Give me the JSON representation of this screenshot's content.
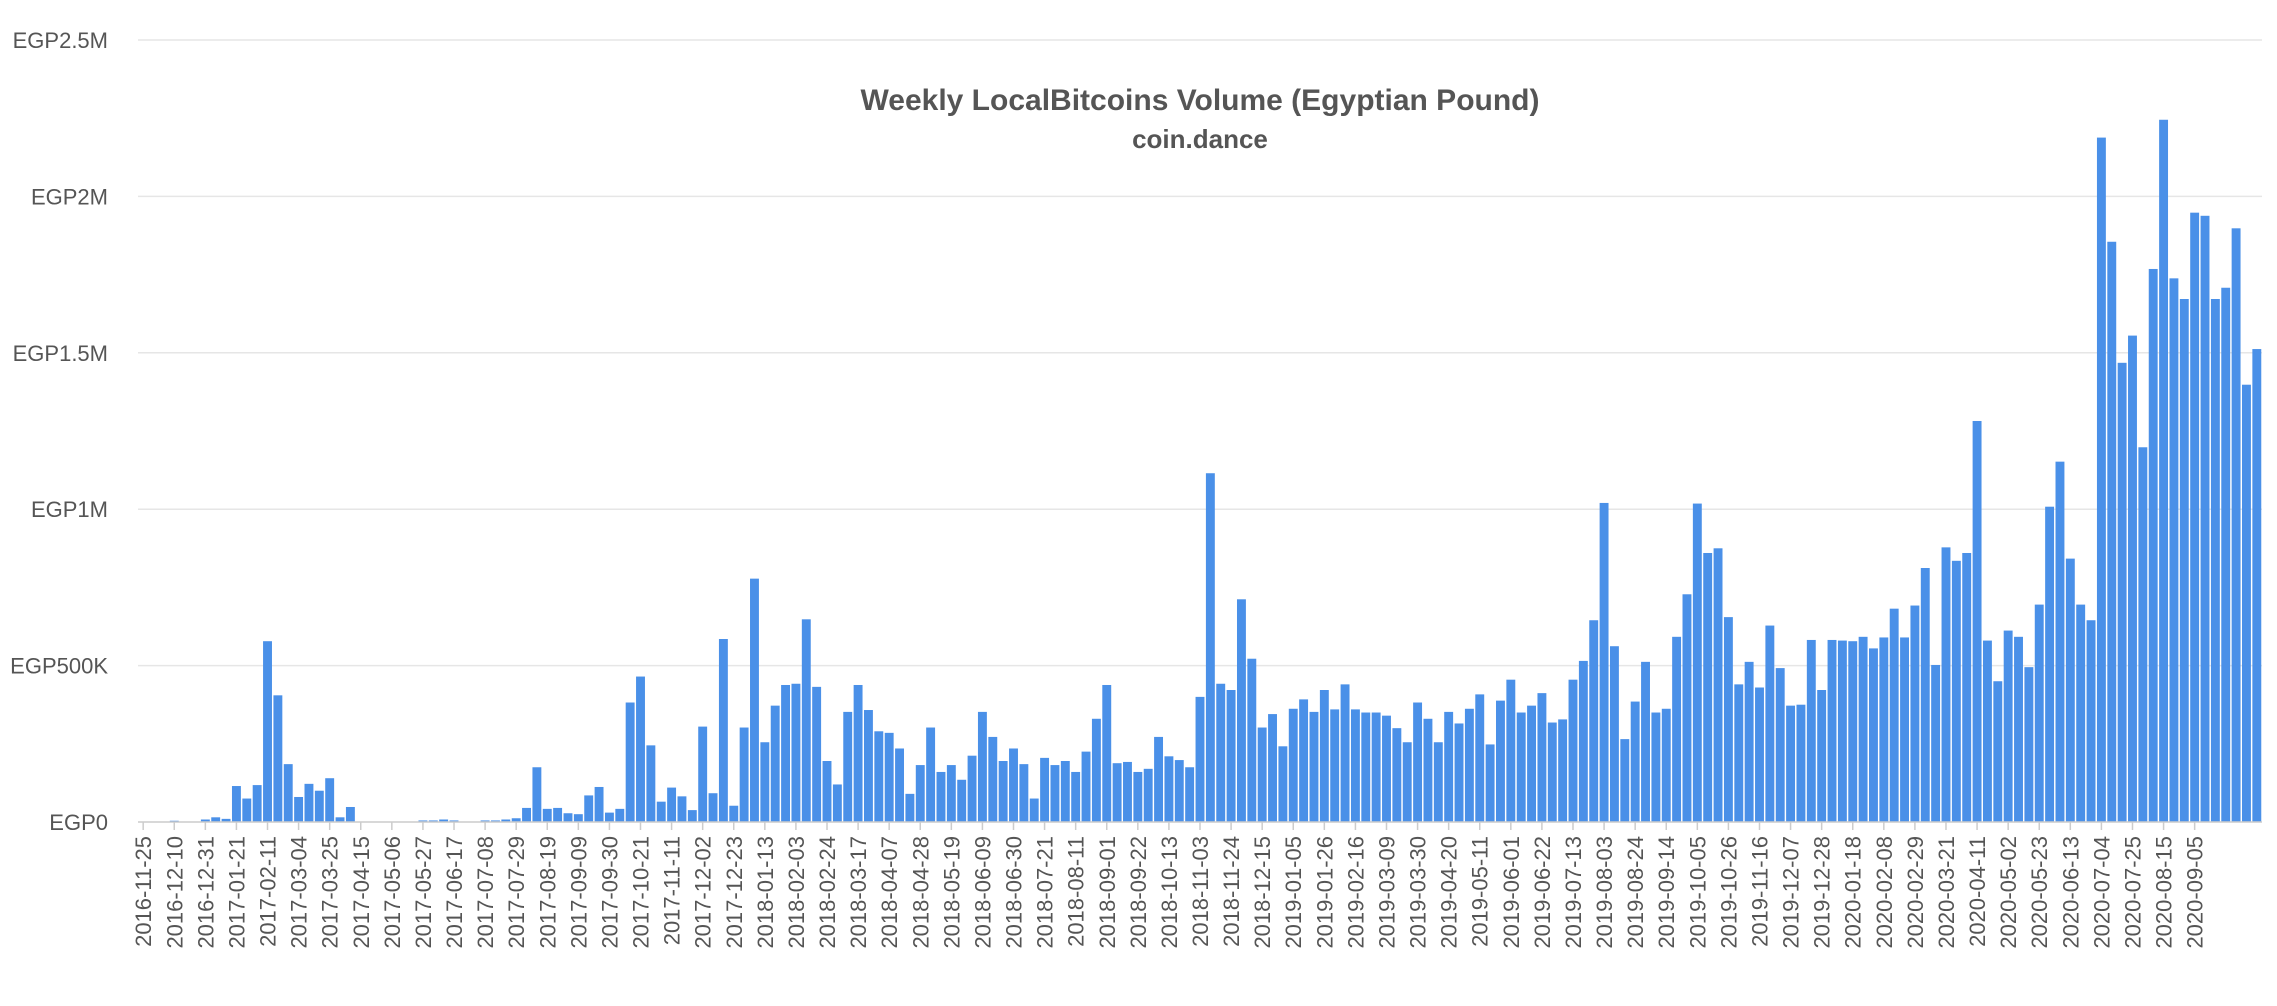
{
  "chart_data": {
    "type": "bar",
    "title": "Weekly LocalBitcoins Volume (Egyptian Pound)",
    "subtitle": "coin.dance",
    "xlabel": "",
    "ylabel": "",
    "ylim": [
      0,
      2500000
    ],
    "y_ticks": [
      {
        "value": 0,
        "label": "EGP0"
      },
      {
        "value": 500000,
        "label": "EGP500K"
      },
      {
        "value": 1000000,
        "label": "EGP1M"
      },
      {
        "value": 1500000,
        "label": "EGP1.5M"
      },
      {
        "value": 2000000,
        "label": "EGP2M"
      },
      {
        "value": 2500000,
        "label": "EGP2.5M"
      }
    ],
    "grid": true,
    "legend": "none",
    "bar_color": "#4a90e8",
    "gridline_color": "#e6e6e6",
    "x_tick_labels": [
      "2016-11-25",
      "2016-12-10",
      "2016-12-31",
      "2017-01-21",
      "2017-02-11",
      "2017-03-04",
      "2017-03-25",
      "2017-04-15",
      "2017-05-06",
      "2017-05-27",
      "2017-06-17",
      "2017-07-08",
      "2017-07-29",
      "2017-08-19",
      "2017-09-09",
      "2017-09-30",
      "2017-10-21",
      "2017-11-11",
      "2017-12-02",
      "2017-12-23",
      "2018-01-13",
      "2018-02-03",
      "2018-02-24",
      "2018-03-17",
      "2018-04-07",
      "2018-04-28",
      "2018-05-19",
      "2018-06-09",
      "2018-06-30",
      "2018-07-21",
      "2018-08-11",
      "2018-09-01",
      "2018-09-22",
      "2018-10-13",
      "2018-11-03",
      "2018-11-24",
      "2018-12-15",
      "2019-01-05",
      "2019-01-26",
      "2019-02-16",
      "2019-03-09",
      "2019-03-30",
      "2019-04-20",
      "2019-05-11",
      "2019-06-01",
      "2019-06-22",
      "2019-07-13",
      "2019-08-03",
      "2019-08-24",
      "2019-09-14",
      "2019-10-05",
      "2019-10-26",
      "2019-11-16",
      "2019-12-07",
      "2019-12-28",
      "2020-01-18",
      "2020-02-08",
      "2020-02-29",
      "2020-03-21",
      "2020-04-11",
      "2020-05-02",
      "2020-05-23",
      "2020-06-13",
      "2020-07-04",
      "2020-07-25",
      "2020-08-15",
      "2020-09-05"
    ],
    "values": [
      0,
      0,
      0,
      4000,
      0,
      0,
      8000,
      15000,
      10000,
      115000,
      75000,
      118000,
      578000,
      405000,
      185000,
      80000,
      122000,
      100000,
      140000,
      15000,
      48000,
      0,
      0,
      0,
      0,
      0,
      0,
      5000,
      5000,
      8000,
      5000,
      0,
      0,
      5000,
      5000,
      8000,
      12000,
      45000,
      175000,
      42000,
      45000,
      28000,
      25000,
      85000,
      112000,
      30000,
      42000,
      382000,
      465000,
      245000,
      65000,
      110000,
      82000,
      38000,
      305000,
      92000,
      585000,
      52000,
      302000,
      778000,
      255000,
      372000,
      438000,
      442000,
      648000,
      432000,
      195000,
      120000,
      352000,
      438000,
      358000,
      290000,
      285000,
      235000,
      90000,
      182000,
      302000,
      160000,
      182000,
      135000,
      212000,
      352000,
      272000,
      195000,
      235000,
      185000,
      75000,
      205000,
      182000,
      195000,
      160000,
      225000,
      330000,
      438000,
      188000,
      192000,
      160000,
      170000,
      272000,
      210000,
      198000,
      175000,
      400000,
      1115000,
      442000,
      422000,
      712000,
      522000,
      302000,
      345000,
      242000,
      362000,
      392000,
      352000,
      422000,
      360000,
      440000,
      360000,
      350000,
      350000,
      340000,
      300000,
      255000,
      382000,
      330000,
      255000,
      352000,
      315000,
      362000,
      408000,
      248000,
      388000,
      455000,
      350000,
      372000,
      412000,
      318000,
      328000,
      455000,
      515000,
      645000,
      1020000,
      562000,
      265000,
      385000,
      512000,
      350000,
      362000,
      592000,
      728000,
      1018000,
      860000,
      875000,
      655000,
      440000,
      512000,
      430000,
      628000,
      492000,
      372000,
      375000,
      582000,
      422000,
      582000,
      580000,
      578000,
      592000,
      555000,
      590000,
      682000,
      590000,
      692000,
      812000,
      502000,
      878000,
      835000,
      860000,
      1282000,
      580000,
      450000,
      612000,
      592000,
      495000,
      695000,
      1008000,
      1152000,
      842000,
      695000,
      645000,
      2188000,
      1855000,
      1468000,
      1555000,
      1198000,
      1768000,
      2245000,
      1738000,
      1672000,
      1948000,
      1938000,
      1672000,
      1708000,
      1898000,
      1398000,
      1512000
    ]
  }
}
